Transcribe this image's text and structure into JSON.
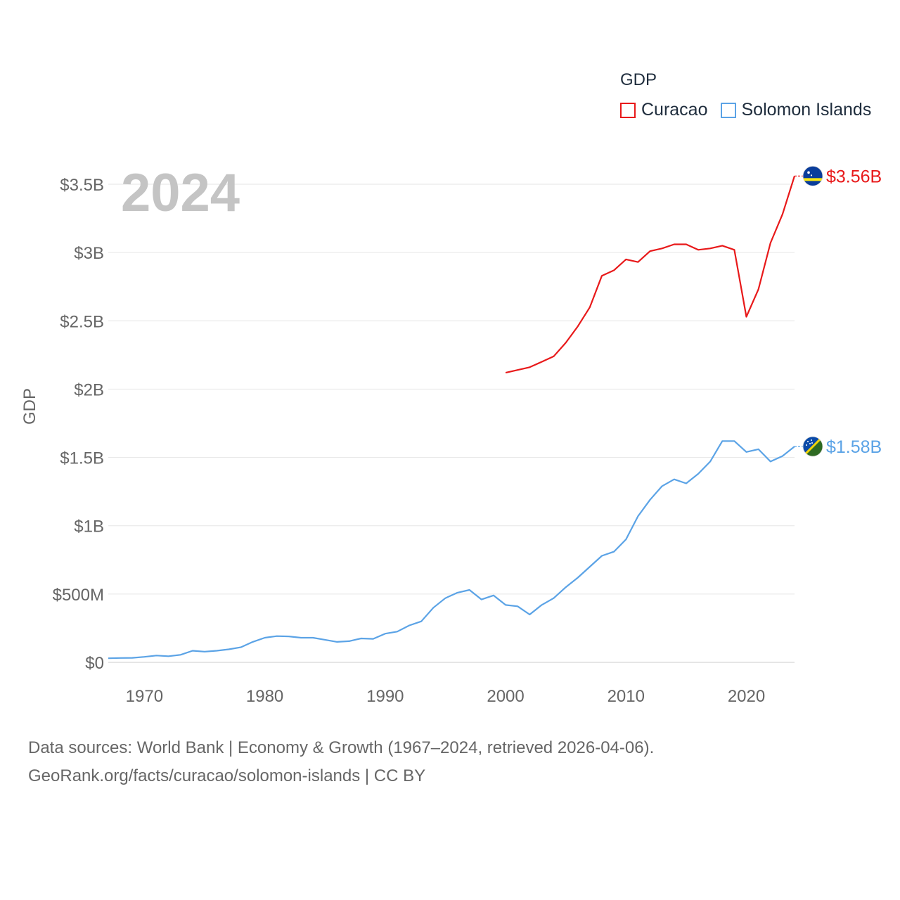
{
  "legend": {
    "title": "GDP",
    "items": [
      {
        "name": "Curacao",
        "color": "#e8191a"
      },
      {
        "name": "Solomon Islands",
        "color": "#5ba3e6"
      }
    ]
  },
  "footer": {
    "line1": "Data sources: World Bank | Economy & Growth (1967–2024, retrieved 2026-04-06).",
    "line2": "GeoRank.org/facts/curacao/solomon-islands | CC BY"
  },
  "chart_data": {
    "type": "line",
    "year_label": "2024",
    "ylabel": "GDP",
    "xlim": [
      1967,
      2024
    ],
    "ylim": [
      0,
      3.75
    ],
    "y_unit": "billion USD",
    "x_ticks": [
      1970,
      1980,
      1990,
      2000,
      2010,
      2020
    ],
    "x_tick_labels": [
      "1970",
      "1980",
      "1990",
      "2000",
      "2010",
      "2020"
    ],
    "y_ticks": [
      0,
      0.5,
      1,
      1.5,
      2,
      2.5,
      3,
      3.5
    ],
    "y_tick_labels": [
      "$0",
      "$500M",
      "$1B",
      "$1.5B",
      "$2B",
      "$2.5B",
      "$3B",
      "$3.5B"
    ],
    "grid": true,
    "series": [
      {
        "name": "Curacao",
        "color": "#e8191a",
        "end_label": "$3.56B",
        "x": [
          2000,
          2001,
          2002,
          2003,
          2004,
          2005,
          2006,
          2007,
          2008,
          2009,
          2010,
          2011,
          2012,
          2013,
          2014,
          2015,
          2016,
          2017,
          2018,
          2019,
          2020,
          2021,
          2022,
          2023,
          2024
        ],
        "values": [
          2.12,
          2.14,
          2.16,
          2.2,
          2.24,
          2.34,
          2.46,
          2.6,
          2.83,
          2.87,
          2.95,
          2.93,
          3.01,
          3.03,
          3.06,
          3.06,
          3.02,
          3.03,
          3.05,
          3.02,
          2.53,
          2.73,
          3.07,
          3.28,
          3.56
        ]
      },
      {
        "name": "Solomon Islands",
        "color": "#5ba3e6",
        "end_label": "$1.58B",
        "x": [
          1967,
          1968,
          1969,
          1970,
          1971,
          1972,
          1973,
          1974,
          1975,
          1976,
          1977,
          1978,
          1979,
          1980,
          1981,
          1982,
          1983,
          1984,
          1985,
          1986,
          1987,
          1988,
          1989,
          1990,
          1991,
          1992,
          1993,
          1994,
          1995,
          1996,
          1997,
          1998,
          1999,
          2000,
          2001,
          2002,
          2003,
          2004,
          2005,
          2006,
          2007,
          2008,
          2009,
          2010,
          2011,
          2012,
          2013,
          2014,
          2015,
          2016,
          2017,
          2018,
          2019,
          2020,
          2021,
          2022,
          2023,
          2024
        ],
        "values": [
          0.03,
          0.032,
          0.033,
          0.04,
          0.05,
          0.045,
          0.055,
          0.085,
          0.078,
          0.085,
          0.095,
          0.11,
          0.15,
          0.18,
          0.192,
          0.19,
          0.18,
          0.18,
          0.165,
          0.15,
          0.155,
          0.175,
          0.172,
          0.21,
          0.225,
          0.27,
          0.3,
          0.4,
          0.47,
          0.51,
          0.53,
          0.46,
          0.49,
          0.42,
          0.41,
          0.35,
          0.42,
          0.47,
          0.55,
          0.62,
          0.7,
          0.78,
          0.81,
          0.9,
          1.07,
          1.19,
          1.29,
          1.34,
          1.31,
          1.38,
          1.47,
          1.62,
          1.62,
          1.54,
          1.56,
          1.47,
          1.51,
          1.58
        ]
      }
    ]
  }
}
